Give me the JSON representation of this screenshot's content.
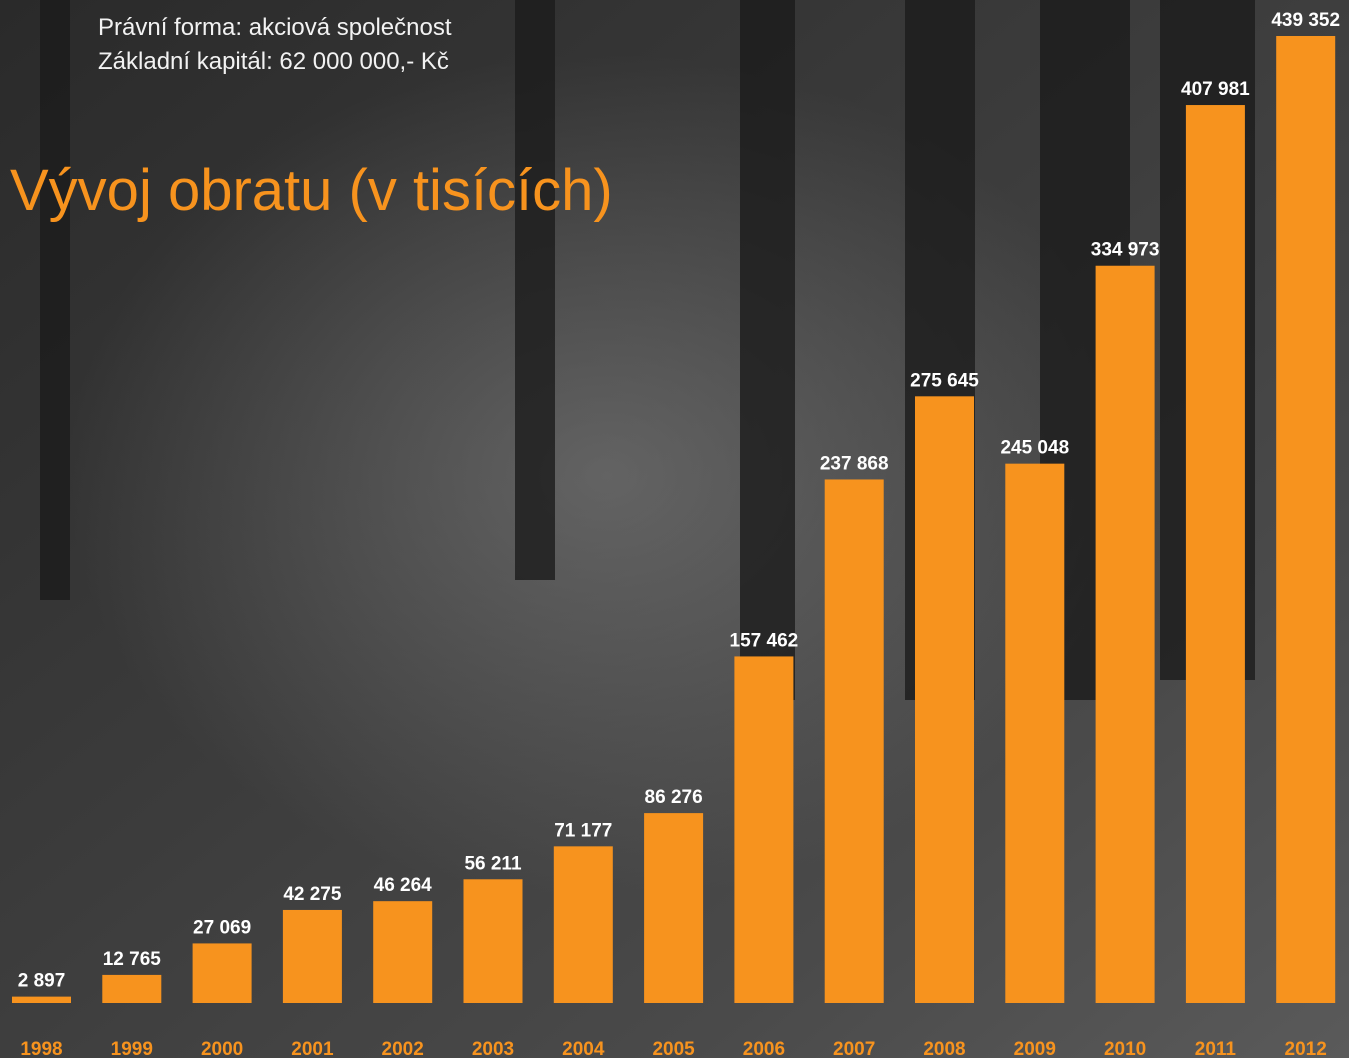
{
  "info": [
    "Právní forma: akciová společnost",
    "Základní kapitál: 62 000 000,- Kč"
  ],
  "chart_data": {
    "type": "bar",
    "title": "Vývoj obratu (v tisících)",
    "categories": [
      "1998",
      "1999",
      "2000",
      "2001",
      "2002",
      "2003",
      "2004",
      "2005",
      "2006",
      "2007",
      "2008",
      "2009",
      "2010",
      "2011",
      "2012"
    ],
    "values": [
      2897,
      12765,
      27069,
      42275,
      46264,
      56211,
      71177,
      86276,
      157462,
      237868,
      275645,
      245048,
      334973,
      407981,
      439352
    ],
    "value_labels": [
      "2 897",
      "12 765",
      "27 069",
      "42 275",
      "46 264",
      "56 211",
      "71 177",
      "86 276",
      "157 462",
      "237 868",
      "275 645",
      "245 048",
      "334 973",
      "407 981",
      "439 352"
    ],
    "color": "#f7931e"
  }
}
